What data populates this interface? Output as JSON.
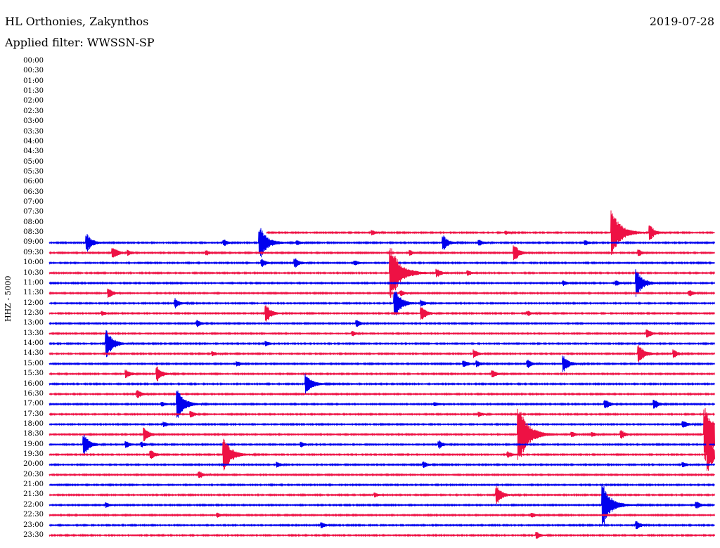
{
  "header": {
    "station": "HL Orthonies, Zakynthos",
    "filter": "Applied filter: WWSSN-SP",
    "date": "2019-07-28"
  },
  "axis": {
    "ylabel": "HHZ - 5000"
  },
  "colors": {
    "blue": "#0000ee",
    "red": "#ee1144"
  },
  "chart_data": {
    "type": "line",
    "description_units": "trace rows are half-hour intervals; event positions in minutes past row start (0-30)",
    "tick_labels": [
      "00:00",
      "00:30",
      "01:00",
      "01:30",
      "02:00",
      "02:30",
      "03:00",
      "03:30",
      "04:00",
      "04:30",
      "05:00",
      "05:30",
      "06:00",
      "06:30",
      "07:00",
      "07:30",
      "08:00",
      "08:30",
      "09:00",
      "09:30",
      "10:00",
      "10:30",
      "11:00",
      "11:30",
      "12:00",
      "12:30",
      "13:00",
      "13:30",
      "14:00",
      "14:30",
      "15:00",
      "15:30",
      "16:00",
      "16:30",
      "17:00",
      "17:30",
      "18:00",
      "18:30",
      "19:00",
      "19:30",
      "20:00",
      "20:30",
      "21:00",
      "21:30",
      "22:00",
      "22:30",
      "23:00",
      "23:30"
    ],
    "series": [
      {
        "label": "08:30",
        "start_min": 9.8,
        "events": [
          [
            25.4,
            3.0
          ],
          [
            27.1,
            1.0
          ],
          [
            14.6,
            0.3
          ],
          [
            20.6,
            0.2
          ]
        ]
      },
      {
        "label": "09:00",
        "start_min": 0,
        "events": [
          [
            1.7,
            1.2
          ],
          [
            9.5,
            2.2
          ],
          [
            17.8,
            0.9
          ],
          [
            7.9,
            0.4
          ],
          [
            19.4,
            0.4
          ],
          [
            24.2,
            0.3
          ],
          [
            11.2,
            0.3
          ]
        ]
      },
      {
        "label": "09:30",
        "start_min": 0,
        "events": [
          [
            2.9,
            0.8
          ],
          [
            21.0,
            1.0
          ],
          [
            26.6,
            0.4
          ],
          [
            7.1,
            0.3
          ],
          [
            16.3,
            0.3
          ],
          [
            3.6,
            0.3
          ]
        ]
      },
      {
        "label": "10:00",
        "start_min": 0,
        "events": [
          [
            9.6,
            0.5
          ],
          [
            11.1,
            0.6
          ],
          [
            13.8,
            0.3
          ]
        ]
      },
      {
        "label": "10:30",
        "start_min": 0,
        "events": [
          [
            17.5,
            0.5
          ],
          [
            15.4,
            3.6
          ],
          [
            18.9,
            0.3
          ]
        ]
      },
      {
        "label": "11:00",
        "start_min": 0,
        "events": [
          [
            26.5,
            1.8
          ],
          [
            23.2,
            0.3
          ],
          [
            25.6,
            0.3
          ]
        ]
      },
      {
        "label": "11:30",
        "start_min": 0,
        "events": [
          [
            2.7,
            0.6
          ],
          [
            28.9,
            0.4
          ],
          [
            15.9,
            0.3
          ]
        ]
      },
      {
        "label": "12:00",
        "start_min": 0,
        "events": [
          [
            5.7,
            0.6
          ],
          [
            15.6,
            1.8
          ],
          [
            16.8,
            0.4
          ]
        ]
      },
      {
        "label": "12:30",
        "start_min": 0,
        "events": [
          [
            9.8,
            1.1
          ],
          [
            16.8,
            0.9
          ],
          [
            2.4,
            0.3
          ],
          [
            21.6,
            0.3
          ]
        ]
      },
      {
        "label": "13:00",
        "start_min": 0,
        "events": [
          [
            6.7,
            0.4
          ],
          [
            13.9,
            0.4
          ]
        ]
      },
      {
        "label": "13:30",
        "start_min": 0,
        "events": [
          [
            27.0,
            0.5
          ],
          [
            13.7,
            0.3
          ]
        ]
      },
      {
        "label": "14:00",
        "start_min": 0,
        "events": [
          [
            2.6,
            1.8
          ],
          [
            9.8,
            0.3
          ]
        ]
      },
      {
        "label": "14:30",
        "start_min": 0,
        "events": [
          [
            26.6,
            1.3
          ],
          [
            19.2,
            0.5
          ],
          [
            28.2,
            0.5
          ],
          [
            7.4,
            0.3
          ]
        ]
      },
      {
        "label": "15:00",
        "start_min": 0,
        "events": [
          [
            23.2,
            1.1
          ],
          [
            18.7,
            0.5
          ],
          [
            21.6,
            0.5
          ],
          [
            8.5,
            0.3
          ],
          [
            19.3,
            0.4
          ]
        ]
      },
      {
        "label": "15:30",
        "start_min": 0,
        "events": [
          [
            3.5,
            0.5
          ],
          [
            4.9,
            0.9
          ],
          [
            20.0,
            0.5
          ]
        ]
      },
      {
        "label": "16:00",
        "start_min": 0,
        "events": [
          [
            11.6,
            1.4
          ]
        ]
      },
      {
        "label": "16:30",
        "start_min": 0,
        "events": [
          [
            4.0,
            0.5
          ]
        ]
      },
      {
        "label": "17:00",
        "start_min": 0,
        "events": [
          [
            5.8,
            2.0
          ],
          [
            25.1,
            0.6
          ],
          [
            27.3,
            0.6
          ],
          [
            17.4,
            0.3
          ],
          [
            5.1,
            0.3
          ]
        ]
      },
      {
        "label": "17:30",
        "start_min": 0,
        "events": [
          [
            6.4,
            0.4
          ],
          [
            19.4,
            0.3
          ]
        ]
      },
      {
        "label": "18:00",
        "start_min": 0,
        "events": [
          [
            5.2,
            0.3
          ],
          [
            28.6,
            0.5
          ]
        ]
      },
      {
        "label": "18:30",
        "start_min": 0,
        "events": [
          [
            4.3,
            0.9
          ],
          [
            21.2,
            3.5
          ],
          [
            25.8,
            0.6
          ],
          [
            23.6,
            0.3
          ],
          [
            24.5,
            0.3
          ],
          [
            29.6,
            3.8
          ]
        ]
      },
      {
        "label": "19:00",
        "start_min": 0,
        "events": [
          [
            1.6,
            1.3
          ],
          [
            3.5,
            0.4
          ],
          [
            4.2,
            0.3
          ],
          [
            17.6,
            0.5
          ],
          [
            11.4,
            0.3
          ]
        ]
      },
      {
        "label": "19:30",
        "start_min": 0,
        "events": [
          [
            4.6,
            0.6
          ],
          [
            7.9,
            2.2
          ],
          [
            20.7,
            0.4
          ],
          [
            29.7,
            2.2
          ]
        ]
      },
      {
        "label": "20:00",
        "start_min": 0,
        "events": [
          [
            16.9,
            0.4
          ],
          [
            28.6,
            0.3
          ],
          [
            10.3,
            0.3
          ]
        ]
      },
      {
        "label": "20:30",
        "start_min": 0,
        "events": [
          [
            6.8,
            0.4
          ]
        ]
      },
      {
        "label": "21:00",
        "start_min": 0,
        "events": []
      },
      {
        "label": "21:30",
        "start_min": 0,
        "events": [
          [
            20.2,
            1.1
          ],
          [
            14.7,
            0.3
          ]
        ]
      },
      {
        "label": "22:00",
        "start_min": 0,
        "events": [
          [
            25.0,
            2.6
          ],
          [
            29.2,
            0.5
          ],
          [
            2.6,
            0.3
          ]
        ]
      },
      {
        "label": "22:30",
        "start_min": 0,
        "events": [
          [
            7.6,
            0.3
          ],
          [
            21.8,
            0.3
          ]
        ]
      },
      {
        "label": "23:00",
        "start_min": 0,
        "events": [
          [
            12.3,
            0.4
          ],
          [
            26.5,
            0.5
          ]
        ]
      },
      {
        "label": "23:30",
        "start_min": 0,
        "events": [
          [
            22.0,
            0.4
          ]
        ]
      }
    ]
  }
}
